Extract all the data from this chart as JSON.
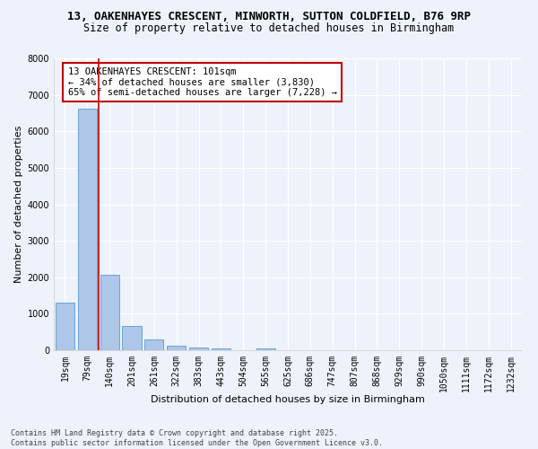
{
  "title_line1": "13, OAKENHAYES CRESCENT, MINWORTH, SUTTON COLDFIELD, B76 9RP",
  "title_line2": "Size of property relative to detached houses in Birmingham",
  "xlabel": "Distribution of detached houses by size in Birmingham",
  "ylabel": "Number of detached properties",
  "categories": [
    "19sqm",
    "79sqm",
    "140sqm",
    "201sqm",
    "261sqm",
    "322sqm",
    "383sqm",
    "443sqm",
    "504sqm",
    "565sqm",
    "625sqm",
    "686sqm",
    "747sqm",
    "807sqm",
    "868sqm",
    "929sqm",
    "990sqm",
    "1050sqm",
    "1111sqm",
    "1172sqm",
    "1232sqm"
  ],
  "values": [
    1310,
    6620,
    2080,
    670,
    305,
    135,
    80,
    55,
    0,
    55,
    0,
    0,
    0,
    0,
    0,
    0,
    0,
    0,
    0,
    0,
    0
  ],
  "bar_color": "#aec6e8",
  "bar_edge_color": "#5b9bd5",
  "vline_color": "#c00000",
  "vline_x_idx": 1.5,
  "annotation_text": "13 OAKENHAYES CRESCENT: 101sqm\n← 34% of detached houses are smaller (3,830)\n65% of semi-detached houses are larger (7,228) →",
  "annotation_box_color": "#ffffff",
  "annotation_box_edge": "#c00000",
  "ylim": [
    0,
    8000
  ],
  "yticks": [
    0,
    1000,
    2000,
    3000,
    4000,
    5000,
    6000,
    7000,
    8000
  ],
  "bg_color": "#eef3fb",
  "plot_bg_color": "#eef3fb",
  "grid_color": "#ffffff",
  "footer_line1": "Contains HM Land Registry data © Crown copyright and database right 2025.",
  "footer_line2": "Contains public sector information licensed under the Open Government Licence v3.0.",
  "title1_fontsize": 9,
  "title2_fontsize": 8.5,
  "axis_label_fontsize": 8,
  "tick_fontsize": 7,
  "annotation_fontsize": 7.5,
  "footer_fontsize": 6
}
